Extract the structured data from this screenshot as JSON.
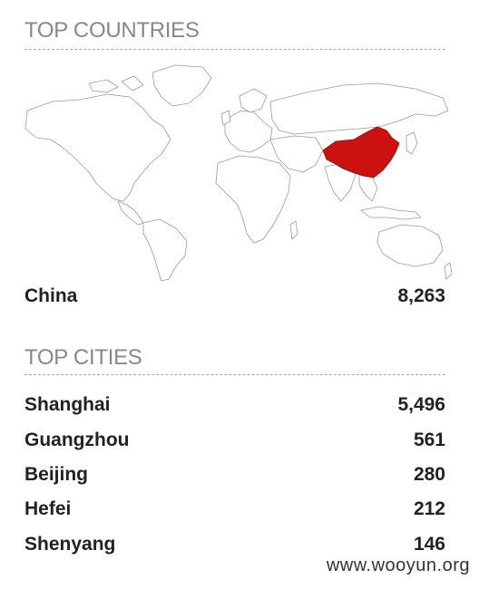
{
  "countries": {
    "title": "TOP COUNTRIES",
    "highlight_color": "#cc1111",
    "items": [
      {
        "name": "China",
        "value": "8,263"
      }
    ]
  },
  "cities": {
    "title": "TOP CITIES",
    "items": [
      {
        "name": "Shanghai",
        "value": "5,496"
      },
      {
        "name": "Guangzhou",
        "value": "561"
      },
      {
        "name": "Beijing",
        "value": "280"
      },
      {
        "name": "Hefei",
        "value": "212"
      },
      {
        "name": "Shenyang",
        "value": "146"
      }
    ]
  },
  "watermark": "www.wooyun.org"
}
